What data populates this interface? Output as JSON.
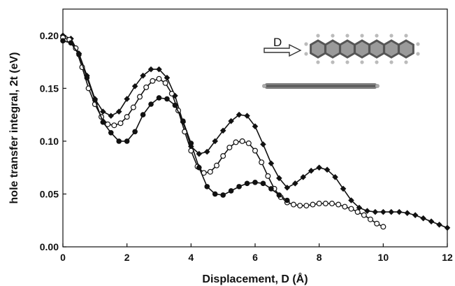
{
  "chart_data": {
    "type": "line",
    "xlabel": "Displacement, D (Å)",
    "ylabel": "hole transfer integral, 2t (eV)",
    "xlim": [
      0,
      12
    ],
    "ylim": [
      0,
      0.225
    ],
    "x_ticks": [
      0,
      2,
      4,
      6,
      8,
      10,
      12
    ],
    "x_tick_labels": [
      "0",
      "2",
      "4",
      "6",
      "8",
      "10",
      "12"
    ],
    "y_ticks": [
      0,
      0.05,
      0.1,
      0.15,
      0.2
    ],
    "y_tick_labels": [
      "0.00",
      "0.05",
      "0.10",
      "0.15",
      "0.20"
    ],
    "grid": false,
    "legend": "none",
    "annotation": "D",
    "series": [
      {
        "marker": "diamond-filled",
        "color": "#111111",
        "x": [
          0,
          0.25,
          0.5,
          0.75,
          1,
          1.25,
          1.5,
          1.75,
          2,
          2.25,
          2.5,
          2.75,
          3,
          3.25,
          3.5,
          3.75,
          4,
          4.25,
          4.5,
          4.75,
          5,
          5.25,
          5.5,
          5.75,
          6,
          6.25,
          6.5,
          6.75,
          7,
          7.25,
          7.5,
          7.75,
          8,
          8.25,
          8.5,
          8.75,
          9,
          9.25,
          9.5,
          9.75,
          10,
          10.25,
          10.5,
          10.75,
          11,
          11.25,
          11.5,
          11.75,
          12
        ],
        "y": [
          0.2,
          0.197,
          0.183,
          0.162,
          0.14,
          0.128,
          0.124,
          0.128,
          0.14,
          0.152,
          0.162,
          0.168,
          0.168,
          0.16,
          0.143,
          0.118,
          0.095,
          0.088,
          0.09,
          0.1,
          0.11,
          0.119,
          0.125,
          0.124,
          0.114,
          0.097,
          0.079,
          0.065,
          0.056,
          0.06,
          0.066,
          0.072,
          0.075,
          0.073,
          0.066,
          0.055,
          0.044,
          0.037,
          0.034,
          0.033,
          0.033,
          0.033,
          0.033,
          0.032,
          0.03,
          0.027,
          0.024,
          0.021,
          0.018
        ]
      },
      {
        "marker": "circle-open",
        "color": "#111111",
        "x": [
          0,
          0.2,
          0.4,
          0.6,
          0.8,
          1,
          1.2,
          1.4,
          1.6,
          1.8,
          2,
          2.2,
          2.4,
          2.6,
          2.8,
          3,
          3.2,
          3.4,
          3.6,
          3.8,
          4,
          4.2,
          4.4,
          4.6,
          4.8,
          5,
          5.2,
          5.4,
          5.6,
          5.8,
          6,
          6.2,
          6.4,
          6.6,
          6.8,
          7,
          7.2,
          7.4,
          7.6,
          7.8,
          8,
          8.2,
          8.4,
          8.6,
          8.8,
          9,
          9.2,
          9.4,
          9.6,
          9.8,
          10
        ],
        "y": [
          0.198,
          0.196,
          0.188,
          0.17,
          0.15,
          0.135,
          0.123,
          0.116,
          0.115,
          0.117,
          0.123,
          0.132,
          0.142,
          0.151,
          0.157,
          0.159,
          0.155,
          0.145,
          0.129,
          0.109,
          0.091,
          0.076,
          0.07,
          0.071,
          0.077,
          0.086,
          0.094,
          0.099,
          0.1,
          0.098,
          0.091,
          0.08,
          0.067,
          0.055,
          0.047,
          0.042,
          0.04,
          0.039,
          0.039,
          0.04,
          0.041,
          0.041,
          0.041,
          0.04,
          0.038,
          0.036,
          0.033,
          0.03,
          0.026,
          0.022,
          0.019
        ]
      },
      {
        "marker": "circle-filled",
        "color": "#111111",
        "x": [
          0,
          0.25,
          0.5,
          0.75,
          1,
          1.25,
          1.5,
          1.75,
          2,
          2.25,
          2.5,
          2.75,
          3,
          3.25,
          3.5,
          3.75,
          4,
          4.25,
          4.5,
          4.75,
          5,
          5.25,
          5.5,
          5.75,
          6,
          6.25,
          6.5,
          6.75,
          7
        ],
        "y": [
          0.195,
          0.193,
          0.182,
          0.16,
          0.139,
          0.118,
          0.108,
          0.1,
          0.1,
          0.109,
          0.125,
          0.135,
          0.141,
          0.14,
          0.134,
          0.119,
          0.098,
          0.075,
          0.057,
          0.05,
          0.049,
          0.053,
          0.057,
          0.06,
          0.061,
          0.06,
          0.055,
          0.049,
          0.044
        ]
      }
    ]
  }
}
